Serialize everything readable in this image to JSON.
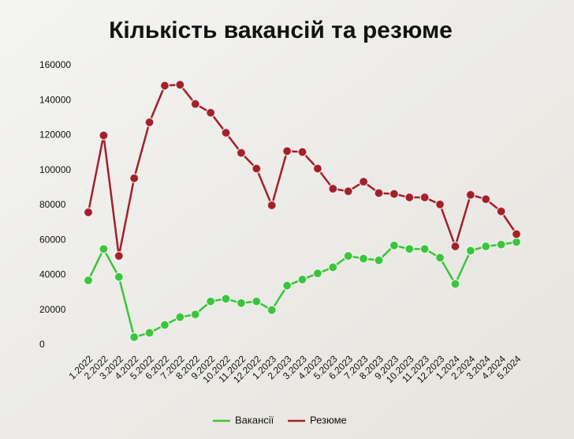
{
  "chart_data": {
    "type": "line",
    "title": "Кількість вакансій та резюме",
    "categories": [
      "1.2022",
      "2.2022",
      "3.2022",
      "4.2022",
      "5.2022",
      "6.2022",
      "7.2022",
      "8.2022",
      "9.2022",
      "10.2022",
      "11.2022",
      "12.2022",
      "1.2023",
      "2.2023",
      "3.2023",
      "4.2023",
      "5.2023",
      "6.2023",
      "7.2023",
      "8.2023",
      "9.2023",
      "10.2023",
      "11.2023",
      "12.2023",
      "1.2024",
      "2.2024",
      "3.2024",
      "4.2024",
      "5.2024"
    ],
    "series": [
      {
        "name": "Вакансії",
        "color": "#3cc43c",
        "values": [
          37000,
          55000,
          39000,
          4500,
          7000,
          11500,
          16000,
          17500,
          25000,
          26500,
          24000,
          25000,
          20000,
          34000,
          37500,
          41000,
          44500,
          51000,
          49500,
          48500,
          57000,
          55000,
          55000,
          50000,
          35000,
          54000,
          56500,
          57500,
          59000
        ]
      },
      {
        "name": "Резюме",
        "color": "#a3202a",
        "values": [
          76000,
          120000,
          51000,
          95500,
          127500,
          148500,
          149000,
          138000,
          133000,
          121500,
          110000,
          101000,
          80000,
          111000,
          110500,
          101000,
          89500,
          88000,
          93500,
          87000,
          86500,
          84500,
          84500,
          80500,
          56500,
          86000,
          83500,
          76500,
          63500
        ]
      }
    ],
    "ylim": [
      0,
      160000
    ],
    "yticks": [
      0,
      20000,
      40000,
      60000,
      80000,
      100000,
      120000,
      140000,
      160000
    ]
  }
}
